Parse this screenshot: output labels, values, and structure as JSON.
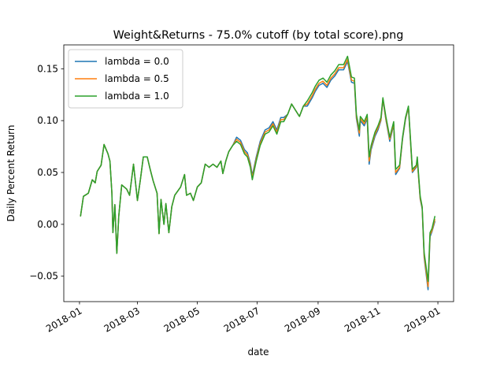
{
  "chart_data": {
    "type": "line",
    "title": "Weight&Returns - 75.0% cutoff (by total score).png",
    "xlabel": "date",
    "ylabel": "Daily Percent Return",
    "x": [
      "2018-01-02",
      "2018-01-05",
      "2018-01-10",
      "2018-01-14",
      "2018-01-17",
      "2018-01-19",
      "2018-01-23",
      "2018-01-26",
      "2018-01-30",
      "2018-02-01",
      "2018-02-03",
      "2018-02-04",
      "2018-02-06",
      "2018-02-08",
      "2018-02-10",
      "2018-02-13",
      "2018-02-18",
      "2018-02-21",
      "2018-02-25",
      "2018-03-01",
      "2018-03-04",
      "2018-03-07",
      "2018-03-11",
      "2018-03-14",
      "2018-03-17",
      "2018-03-21",
      "2018-03-23",
      "2018-03-25",
      "2018-03-28",
      "2018-03-30",
      "2018-04-02",
      "2018-04-05",
      "2018-04-08",
      "2018-04-11",
      "2018-04-14",
      "2018-04-18",
      "2018-04-20",
      "2018-04-24",
      "2018-04-27",
      "2018-05-01",
      "2018-05-05",
      "2018-05-09",
      "2018-05-13",
      "2018-05-17",
      "2018-05-21",
      "2018-05-25",
      "2018-05-27",
      "2018-05-30",
      "2018-06-02",
      "2018-06-06",
      "2018-06-10",
      "2018-06-14",
      "2018-06-18",
      "2018-06-21",
      "2018-06-24",
      "2018-06-26",
      "2018-06-30",
      "2018-07-04",
      "2018-07-09",
      "2018-07-13",
      "2018-07-17",
      "2018-07-21",
      "2018-07-25",
      "2018-07-28",
      "2018-08-01",
      "2018-08-05",
      "2018-08-09",
      "2018-08-13",
      "2018-08-17",
      "2018-08-21",
      "2018-08-26",
      "2018-08-29",
      "2018-09-02",
      "2018-09-06",
      "2018-09-10",
      "2018-09-14",
      "2018-09-18",
      "2018-09-22",
      "2018-09-27",
      "2018-10-01",
      "2018-10-05",
      "2018-10-08",
      "2018-10-10",
      "2018-10-13",
      "2018-10-14",
      "2018-10-18",
      "2018-10-21",
      "2018-10-23",
      "2018-10-25",
      "2018-10-29",
      "2018-11-01",
      "2018-11-04",
      "2018-11-06",
      "2018-11-09",
      "2018-11-13",
      "2018-11-17",
      "2018-11-19",
      "2018-11-23",
      "2018-11-26",
      "2018-11-29",
      "2018-12-02",
      "2018-12-04",
      "2018-12-06",
      "2018-12-10",
      "2018-12-11",
      "2018-12-14",
      "2018-12-16",
      "2018-12-18",
      "2018-12-22",
      "2018-12-24",
      "2018-12-26",
      "2018-12-29"
    ],
    "series": [
      {
        "name": "lambda = 0.0",
        "color": "#1f77b4",
        "values": [
          0.0076,
          0.027,
          0.03,
          0.043,
          0.04,
          0.051,
          0.057,
          0.077,
          0.068,
          0.061,
          0.03,
          -0.008,
          0.019,
          -0.028,
          0.008,
          0.038,
          0.034,
          0.028,
          0.058,
          0.023,
          0.043,
          0.065,
          0.065,
          0.053,
          0.042,
          0.03,
          -0.009,
          0.024,
          0.0,
          0.02,
          -0.008,
          0.017,
          0.028,
          0.032,
          0.036,
          0.048,
          0.028,
          0.03,
          0.023,
          0.036,
          0.04,
          0.058,
          0.055,
          0.058,
          0.055,
          0.061,
          0.049,
          0.061,
          0.07,
          0.076,
          0.084,
          0.081,
          0.072,
          0.069,
          0.059,
          0.047,
          0.065,
          0.08,
          0.091,
          0.093,
          0.099,
          0.091,
          0.103,
          0.103,
          0.106,
          0.116,
          0.11,
          0.104,
          0.114,
          0.114,
          0.122,
          0.128,
          0.134,
          0.136,
          0.132,
          0.139,
          0.143,
          0.149,
          0.149,
          0.157,
          0.137,
          0.136,
          0.102,
          0.085,
          0.1,
          0.095,
          0.102,
          0.058,
          0.072,
          0.085,
          0.091,
          0.1,
          0.12,
          0.101,
          0.08,
          0.096,
          0.048,
          0.054,
          0.082,
          0.101,
          0.113,
          0.081,
          0.05,
          0.055,
          0.062,
          0.024,
          0.015,
          -0.032,
          -0.063,
          -0.012,
          -0.007,
          0.003
        ]
      },
      {
        "name": "lambda = 0.5",
        "color": "#ff7f0e",
        "values": [
          0.0076,
          0.027,
          0.03,
          0.043,
          0.04,
          0.051,
          0.057,
          0.077,
          0.068,
          0.061,
          0.03,
          -0.008,
          0.019,
          -0.028,
          0.008,
          0.038,
          0.034,
          0.028,
          0.058,
          0.023,
          0.043,
          0.065,
          0.065,
          0.053,
          0.042,
          0.03,
          -0.009,
          0.024,
          0.0,
          0.02,
          -0.008,
          0.017,
          0.028,
          0.032,
          0.036,
          0.048,
          0.028,
          0.03,
          0.023,
          0.036,
          0.04,
          0.058,
          0.055,
          0.058,
          0.055,
          0.061,
          0.049,
          0.061,
          0.07,
          0.076,
          0.082,
          0.079,
          0.07,
          0.067,
          0.057,
          0.045,
          0.063,
          0.078,
          0.089,
          0.091,
          0.097,
          0.089,
          0.101,
          0.101,
          0.106,
          0.116,
          0.11,
          0.104,
          0.114,
          0.116,
          0.124,
          0.13,
          0.136,
          0.138,
          0.134,
          0.141,
          0.145,
          0.151,
          0.151,
          0.159,
          0.139,
          0.138,
          0.104,
          0.088,
          0.102,
          0.097,
          0.104,
          0.061,
          0.074,
          0.087,
          0.093,
          0.101,
          0.121,
          0.102,
          0.082,
          0.097,
          0.05,
          0.055,
          0.083,
          0.102,
          0.113,
          0.082,
          0.051,
          0.056,
          0.063,
          0.025,
          0.016,
          -0.03,
          -0.06,
          -0.01,
          -0.006,
          0.005
        ]
      },
      {
        "name": "lambda = 1.0",
        "color": "#2ca02c",
        "values": [
          0.0076,
          0.027,
          0.03,
          0.043,
          0.04,
          0.051,
          0.057,
          0.077,
          0.068,
          0.061,
          0.03,
          -0.008,
          0.019,
          -0.028,
          0.008,
          0.038,
          0.034,
          0.028,
          0.058,
          0.023,
          0.043,
          0.065,
          0.065,
          0.053,
          0.042,
          0.03,
          -0.009,
          0.024,
          0.0,
          0.02,
          -0.008,
          0.017,
          0.028,
          0.032,
          0.036,
          0.048,
          0.028,
          0.03,
          0.023,
          0.036,
          0.04,
          0.058,
          0.055,
          0.058,
          0.055,
          0.061,
          0.049,
          0.061,
          0.07,
          0.076,
          0.08,
          0.077,
          0.068,
          0.065,
          0.055,
          0.043,
          0.061,
          0.076,
          0.087,
          0.089,
          0.095,
          0.087,
          0.099,
          0.099,
          0.106,
          0.116,
          0.11,
          0.104,
          0.114,
          0.119,
          0.127,
          0.133,
          0.139,
          0.141,
          0.137,
          0.144,
          0.148,
          0.154,
          0.154,
          0.162,
          0.142,
          0.141,
          0.106,
          0.091,
          0.104,
          0.099,
          0.106,
          0.065,
          0.076,
          0.089,
          0.095,
          0.103,
          0.122,
          0.104,
          0.084,
          0.099,
          0.053,
          0.057,
          0.084,
          0.103,
          0.114,
          0.084,
          0.053,
          0.057,
          0.065,
          0.027,
          0.017,
          -0.027,
          -0.055,
          -0.008,
          -0.004,
          0.008
        ]
      }
    ],
    "xlim": [
      "2017-12-16",
      "2019-01-17"
    ],
    "xticks": [
      {
        "value": "2018-01-01",
        "label": "2018-01"
      },
      {
        "value": "2018-03-01",
        "label": "2018-03"
      },
      {
        "value": "2018-05-01",
        "label": "2018-05"
      },
      {
        "value": "2018-07-01",
        "label": "2018-07"
      },
      {
        "value": "2018-09-01",
        "label": "2018-09"
      },
      {
        "value": "2018-11-01",
        "label": "2018-11"
      },
      {
        "value": "2019-01-01",
        "label": "2019-01"
      }
    ],
    "ylim": [
      -0.0745,
      0.173
    ],
    "yticks": [
      {
        "value": -0.05,
        "label": "−0.05"
      },
      {
        "value": 0,
        "label": "0.00"
      },
      {
        "value": 0.05,
        "label": "0.05"
      },
      {
        "value": 0.1,
        "label": "0.10"
      },
      {
        "value": 0.15,
        "label": "0.15"
      }
    ],
    "grid": false,
    "legend": "upper left"
  }
}
